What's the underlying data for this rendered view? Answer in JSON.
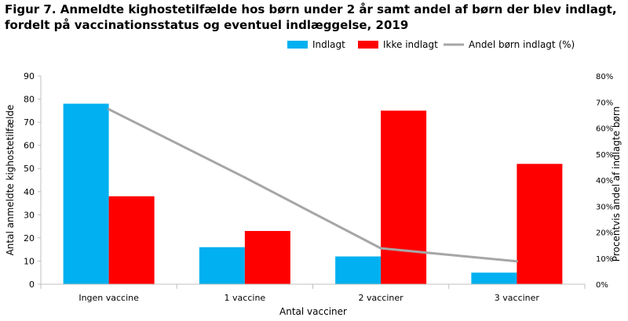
{
  "title_lines": [
    "Figur 7. Anmeldte kighostetilfælde  hos børn under 2 år samt andel af børn der blev indlagt,",
    "fordelt på vaccinationsstatus  og eventuel indlæggelse, 2019"
  ],
  "chart_data": {
    "type": "bar",
    "categories": [
      "Ingen vaccine",
      "1 vaccine",
      "2 vacciner",
      "3 vacciner"
    ],
    "series": [
      {
        "name": "Indlagt",
        "type": "bar",
        "axis": "left",
        "color": "#00B0F0",
        "values": [
          78,
          16,
          12,
          5
        ]
      },
      {
        "name": "Ikke indlagt",
        "type": "bar",
        "axis": "left",
        "color": "#FF0000",
        "values": [
          38,
          23,
          75,
          52
        ]
      },
      {
        "name": "Andel børn indlagt (%)",
        "type": "line",
        "axis": "right",
        "color": "#A6A6A6",
        "values": [
          67.2,
          41.0,
          13.8,
          8.8
        ]
      }
    ],
    "xlabel": "Antal vacciner",
    "ylabel": "Antal anmeldte kighostetilfælde",
    "y2label": "Procentvis andel af indlagte børn",
    "ylim": [
      0,
      90
    ],
    "yticks": [
      0,
      10,
      20,
      30,
      40,
      50,
      60,
      70,
      80,
      90
    ],
    "y2lim": [
      0,
      80
    ],
    "y2ticks": [
      "0%",
      "10%",
      "20%",
      "30%",
      "40%",
      "50%",
      "60%",
      "70%",
      "80%"
    ],
    "grid": false,
    "legend_position": "top-right"
  }
}
